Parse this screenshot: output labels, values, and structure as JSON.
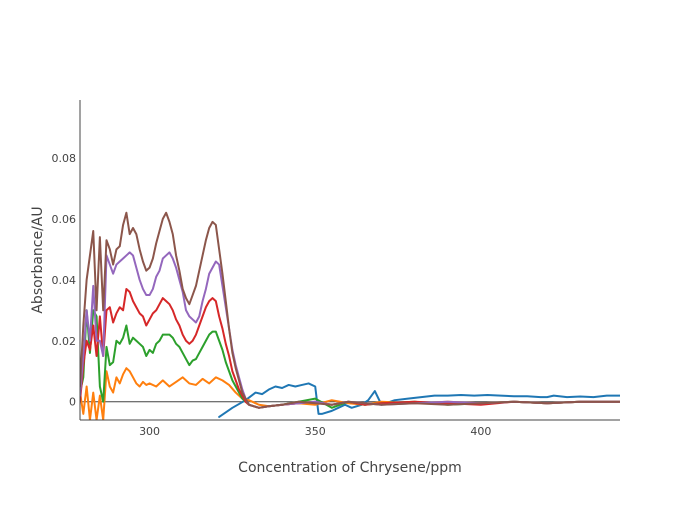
{
  "chart_data": {
    "type": "line",
    "title": "",
    "xlabel": "Concentration of Chrysene/ppm",
    "ylabel": "Absorbance/AU",
    "xlim": [
      279,
      442
    ],
    "ylim": [
      -0.006,
      0.099
    ],
    "x_ticks": [
      300,
      350,
      400
    ],
    "y_ticks": [
      0,
      0.02,
      0.04,
      0.06,
      0.08
    ],
    "y_tick_labels": [
      "0",
      "0.02",
      "0.04",
      "0.06",
      "0.08"
    ],
    "grid": false,
    "legend": "none",
    "series": [
      {
        "color": "#1f77b4",
        "x": [
          321,
          325,
          329,
          332,
          334,
          336,
          338,
          340,
          342,
          344,
          346,
          348,
          350,
          351,
          352,
          355,
          357,
          359,
          361,
          364,
          366,
          368,
          370,
          374,
          378,
          382,
          386,
          390,
          394,
          398,
          402,
          406,
          410,
          414,
          418,
          420,
          422,
          426,
          430,
          434,
          438,
          442
        ],
        "y": [
          -0.005,
          -0.002,
          0.0005,
          0.003,
          0.0025,
          0.004,
          0.005,
          0.0045,
          0.0055,
          0.005,
          0.0055,
          0.006,
          0.005,
          -0.004,
          -0.004,
          -0.003,
          -0.002,
          -0.001,
          -0.002,
          -0.001,
          0.0005,
          0.0035,
          -0.001,
          0.0005,
          0.001,
          0.0015,
          0.002,
          0.002,
          0.0022,
          0.002,
          0.0022,
          0.002,
          0.0018,
          0.0018,
          0.0015,
          0.0015,
          0.002,
          0.0015,
          0.0017,
          0.0015,
          0.002,
          0.002
        ]
      },
      {
        "color": "#ff7f0e",
        "x": [
          279,
          280,
          281,
          282,
          283,
          284,
          285,
          286,
          287,
          288,
          289,
          290,
          291,
          292,
          293,
          294,
          295,
          296,
          297,
          298,
          299,
          300,
          302,
          304,
          306,
          308,
          310,
          312,
          314,
          316,
          318,
          320,
          322,
          324,
          326,
          328,
          330,
          333,
          336,
          340,
          345,
          350,
          355,
          360,
          365,
          370,
          380,
          390,
          400,
          410,
          420,
          430,
          442
        ],
        "y": [
          0.003,
          -0.004,
          0.005,
          -0.006,
          0.003,
          -0.006,
          0.002,
          -0.006,
          0.01,
          0.005,
          0.003,
          0.008,
          0.006,
          0.009,
          0.011,
          0.01,
          0.008,
          0.006,
          0.005,
          0.0065,
          0.0055,
          0.006,
          0.005,
          0.007,
          0.005,
          0.0065,
          0.008,
          0.006,
          0.0055,
          0.0075,
          0.006,
          0.008,
          0.007,
          0.0055,
          0.003,
          0.001,
          0.0005,
          -0.001,
          -0.0015,
          -0.001,
          -0.0005,
          -0.001,
          0.0005,
          -0.0005,
          -0.001,
          0.0,
          -0.0005,
          0.0,
          -0.0005,
          0.0,
          -0.0005,
          0.0,
          0.0
        ]
      },
      {
        "color": "#2ca02c",
        "x": [
          279,
          280,
          281,
          282,
          283,
          284,
          285,
          286,
          287,
          288,
          289,
          290,
          291,
          292,
          293,
          294,
          295,
          296,
          297,
          298,
          299,
          300,
          301,
          302,
          303,
          304,
          305,
          306,
          307,
          308,
          309,
          310,
          311,
          312,
          313,
          314,
          315,
          316,
          317,
          318,
          319,
          320,
          321,
          322,
          323,
          324,
          325,
          326,
          327,
          328,
          329,
          330,
          333,
          336,
          340,
          345,
          350,
          355,
          360,
          365,
          370,
          380,
          390,
          400,
          410,
          420,
          430,
          442
        ],
        "y": [
          0.003,
          0.008,
          0.03,
          0.016,
          0.03,
          0.028,
          0.005,
          0.0,
          0.018,
          0.012,
          0.013,
          0.02,
          0.019,
          0.021,
          0.025,
          0.019,
          0.021,
          0.02,
          0.019,
          0.018,
          0.015,
          0.017,
          0.016,
          0.019,
          0.02,
          0.022,
          0.022,
          0.022,
          0.021,
          0.019,
          0.018,
          0.016,
          0.014,
          0.012,
          0.0135,
          0.014,
          0.016,
          0.018,
          0.02,
          0.022,
          0.023,
          0.023,
          0.02,
          0.017,
          0.013,
          0.01,
          0.007,
          0.005,
          0.003,
          0.001,
          0.0,
          -0.001,
          -0.002,
          -0.0015,
          -0.001,
          0.0,
          0.001,
          -0.002,
          0.0,
          -0.001,
          -0.0005,
          0.0,
          -0.001,
          -0.0005,
          0.0,
          -0.0005,
          0.0,
          0.0
        ]
      },
      {
        "color": "#d62728",
        "x": [
          279,
          280,
          281,
          282,
          283,
          284,
          285,
          286,
          287,
          288,
          289,
          290,
          291,
          292,
          293,
          294,
          295,
          296,
          297,
          298,
          299,
          300,
          301,
          302,
          303,
          304,
          305,
          306,
          307,
          308,
          309,
          310,
          311,
          312,
          313,
          314,
          315,
          316,
          317,
          318,
          319,
          320,
          321,
          322,
          323,
          324,
          325,
          326,
          327,
          328,
          329,
          330,
          333,
          336,
          340,
          345,
          350,
          355,
          360,
          365,
          370,
          380,
          390,
          400,
          410,
          420,
          430,
          442
        ],
        "y": [
          0.0,
          0.012,
          0.02,
          0.017,
          0.025,
          0.015,
          0.028,
          0.015,
          0.03,
          0.031,
          0.026,
          0.029,
          0.031,
          0.03,
          0.037,
          0.036,
          0.033,
          0.031,
          0.029,
          0.028,
          0.025,
          0.027,
          0.029,
          0.03,
          0.032,
          0.034,
          0.033,
          0.032,
          0.03,
          0.027,
          0.025,
          0.022,
          0.02,
          0.019,
          0.02,
          0.022,
          0.025,
          0.028,
          0.031,
          0.033,
          0.034,
          0.033,
          0.028,
          0.024,
          0.019,
          0.015,
          0.01,
          0.007,
          0.004,
          0.002,
          0.0,
          -0.001,
          -0.002,
          -0.0015,
          -0.001,
          -0.0005,
          0.0,
          -0.001,
          0.0,
          -0.001,
          -0.0005,
          0.0,
          -0.0005,
          -0.001,
          0.0,
          -0.0005,
          0.0,
          0.0
        ]
      },
      {
        "color": "#9467bd",
        "x": [
          279,
          280,
          281,
          282,
          283,
          284,
          285,
          286,
          287,
          288,
          289,
          290,
          291,
          292,
          293,
          294,
          295,
          296,
          297,
          298,
          299,
          300,
          301,
          302,
          303,
          304,
          305,
          306,
          307,
          308,
          309,
          310,
          311,
          312,
          313,
          314,
          315,
          316,
          317,
          318,
          319,
          320,
          321,
          322,
          323,
          324,
          325,
          326,
          327,
          328,
          329,
          330,
          333,
          336,
          340,
          345,
          350,
          355,
          360,
          365,
          370,
          380,
          390,
          400,
          410,
          420,
          430,
          442
        ],
        "y": [
          0.002,
          0.015,
          0.03,
          0.02,
          0.038,
          0.02,
          0.02,
          0.015,
          0.048,
          0.045,
          0.042,
          0.045,
          0.046,
          0.047,
          0.048,
          0.049,
          0.048,
          0.044,
          0.04,
          0.037,
          0.035,
          0.035,
          0.037,
          0.041,
          0.043,
          0.047,
          0.048,
          0.049,
          0.047,
          0.044,
          0.04,
          0.036,
          0.03,
          0.028,
          0.027,
          0.026,
          0.028,
          0.033,
          0.037,
          0.042,
          0.044,
          0.046,
          0.045,
          0.038,
          0.031,
          0.024,
          0.017,
          0.012,
          0.008,
          0.004,
          0.001,
          -0.001,
          -0.002,
          -0.0015,
          -0.001,
          -0.0005,
          0.0,
          -0.001,
          0.0,
          -0.0005,
          -0.001,
          -0.0005,
          0.0,
          -0.0005,
          0.0,
          -0.0005,
          0.0,
          0.0
        ]
      },
      {
        "color": "#8c564b",
        "x": [
          279,
          280,
          281,
          282,
          283,
          284,
          285,
          286,
          287,
          288,
          289,
          290,
          291,
          292,
          293,
          294,
          295,
          296,
          297,
          298,
          299,
          300,
          301,
          302,
          303,
          304,
          305,
          306,
          307,
          308,
          309,
          310,
          311,
          312,
          313,
          314,
          315,
          316,
          317,
          318,
          319,
          320,
          321,
          322,
          323,
          324,
          325,
          326,
          327,
          328,
          329,
          330,
          333,
          336,
          340,
          345,
          350,
          355,
          360,
          365,
          370,
          380,
          390,
          400,
          410,
          420,
          430,
          442
        ],
        "y": [
          0.005,
          0.025,
          0.04,
          0.048,
          0.056,
          0.03,
          0.054,
          0.03,
          0.053,
          0.05,
          0.045,
          0.05,
          0.051,
          0.058,
          0.062,
          0.055,
          0.057,
          0.055,
          0.05,
          0.046,
          0.043,
          0.044,
          0.047,
          0.052,
          0.056,
          0.06,
          0.062,
          0.059,
          0.055,
          0.048,
          0.043,
          0.037,
          0.034,
          0.032,
          0.035,
          0.038,
          0.043,
          0.048,
          0.053,
          0.057,
          0.059,
          0.058,
          0.05,
          0.042,
          0.033,
          0.024,
          0.016,
          0.011,
          0.007,
          0.003,
          0.001,
          -0.001,
          -0.002,
          -0.0015,
          -0.001,
          0.0,
          -0.0005,
          -0.001,
          0.0,
          -0.0005,
          -0.001,
          -0.0005,
          -0.001,
          -0.0005,
          0.0,
          -0.0005,
          0.0,
          0.0
        ]
      }
    ]
  }
}
